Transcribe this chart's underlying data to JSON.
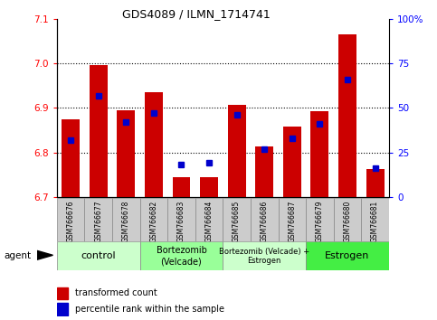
{
  "title": "GDS4089 / ILMN_1714741",
  "samples": [
    "GSM766676",
    "GSM766677",
    "GSM766678",
    "GSM766682",
    "GSM766683",
    "GSM766684",
    "GSM766685",
    "GSM766686",
    "GSM766687",
    "GSM766679",
    "GSM766680",
    "GSM766681"
  ],
  "red_values": [
    6.875,
    6.997,
    6.895,
    6.935,
    6.745,
    6.745,
    6.908,
    6.813,
    6.858,
    6.893,
    7.065,
    6.762
  ],
  "blue_values": [
    32,
    57,
    42,
    47,
    18,
    19,
    46,
    27,
    33,
    41,
    66,
    16
  ],
  "ylim_left": [
    6.7,
    7.1
  ],
  "ylim_right": [
    0,
    100
  ],
  "yticks_left": [
    6.7,
    6.8,
    6.9,
    7.0,
    7.1
  ],
  "yticks_right": [
    0,
    25,
    50,
    75,
    100
  ],
  "bar_color": "#cc0000",
  "blue_color": "#0000cc",
  "baseline": 6.7,
  "groups": [
    {
      "label": "control",
      "start": 0,
      "end": 3,
      "color": "#ccffcc",
      "fontsize": 8
    },
    {
      "label": "Bortezomib\n(Velcade)",
      "start": 3,
      "end": 6,
      "color": "#99ff99",
      "fontsize": 7
    },
    {
      "label": "Bortezomib (Velcade) +\nEstrogen",
      "start": 6,
      "end": 9,
      "color": "#ccffcc",
      "fontsize": 6
    },
    {
      "label": "Estrogen",
      "start": 9,
      "end": 12,
      "color": "#44ee44",
      "fontsize": 8
    }
  ],
  "legend_items": [
    {
      "color": "#cc0000",
      "label": "transformed count"
    },
    {
      "color": "#0000cc",
      "label": "percentile rank within the sample"
    }
  ],
  "agent_label": "agent",
  "background_color": "#ffffff"
}
